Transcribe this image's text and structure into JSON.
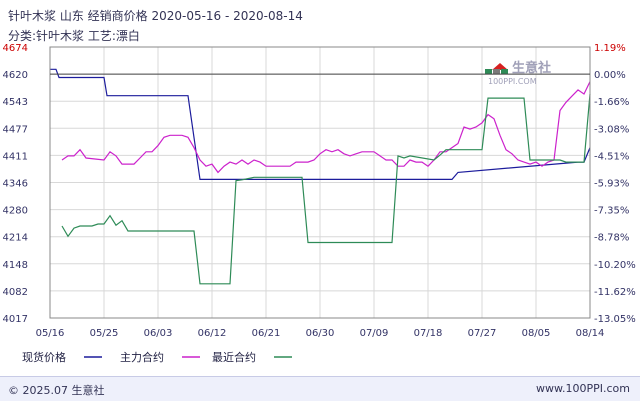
{
  "header": {
    "title": "针叶木浆 山东 经销商价格 2020-05-16 - 2020-08-14",
    "subtitle": "分类:针叶木浆 工艺:漂白"
  },
  "watermark": {
    "text": "生意社",
    "sub": "100PPI.COM"
  },
  "footer": {
    "left": "© 2025.07 生意社",
    "right": "www.100PPI.com"
  },
  "colors": {
    "spot": "#1c1c9c",
    "main_contract": "#cc22cc",
    "nearest_contract": "#2e8b57",
    "left_axis_top": "#cc0000",
    "right_axis_top": "#cc0000",
    "grid": "#d8d8d8",
    "axis_text": "#333366"
  },
  "chart_data": {
    "type": "line",
    "x_ticks": [
      "05/16",
      "05/25",
      "06/03",
      "06/12",
      "06/21",
      "06/30",
      "07/09",
      "07/18",
      "07/27",
      "08/05",
      "08/14"
    ],
    "y_left_ticks": [
      "4674",
      "4620",
      "4543",
      "4477",
      "4411",
      "4346",
      "4280",
      "4214",
      "4148",
      "4082",
      "4017"
    ],
    "y_right_ticks": [
      "1.19%",
      "0.00%",
      "-1.66%",
      "-3.08%",
      "-4.51%",
      "-5.93%",
      "-7.35%",
      "-8.78%",
      "-10.20%",
      "-11.62%",
      "-13.05%"
    ],
    "ylim": [
      4017,
      4674
    ],
    "x_range_days": 90,
    "series": [
      {
        "name": "现货价格",
        "color": "#1c1c9c",
        "points": [
          [
            0,
            4620
          ],
          [
            1,
            4620
          ],
          [
            1.5,
            4600
          ],
          [
            9,
            4600
          ],
          [
            9.5,
            4556
          ],
          [
            23,
            4556
          ],
          [
            25,
            4353
          ],
          [
            67,
            4353
          ],
          [
            68,
            4370
          ],
          [
            88,
            4395
          ],
          [
            89,
            4395
          ],
          [
            90,
            4430
          ]
        ]
      },
      {
        "name": "主力合约",
        "color": "#cc22cc",
        "points": [
          [
            2,
            4400
          ],
          [
            3,
            4410
          ],
          [
            4,
            4410
          ],
          [
            5,
            4425
          ],
          [
            6,
            4405
          ],
          [
            9,
            4400
          ],
          [
            10,
            4420
          ],
          [
            11,
            4410
          ],
          [
            12,
            4390
          ],
          [
            13,
            4390
          ],
          [
            14,
            4390
          ],
          [
            15,
            4405
          ],
          [
            16,
            4420
          ],
          [
            17,
            4420
          ],
          [
            18,
            4435
          ],
          [
            19,
            4455
          ],
          [
            20,
            4460
          ],
          [
            21,
            4460
          ],
          [
            22,
            4460
          ],
          [
            23,
            4455
          ],
          [
            24,
            4430
          ],
          [
            25,
            4400
          ],
          [
            26,
            4385
          ],
          [
            27,
            4390
          ],
          [
            28,
            4370
          ],
          [
            29,
            4385
          ],
          [
            30,
            4395
          ],
          [
            31,
            4390
          ],
          [
            32,
            4400
          ],
          [
            33,
            4390
          ],
          [
            34,
            4400
          ],
          [
            35,
            4395
          ],
          [
            36,
            4385
          ],
          [
            37,
            4385
          ],
          [
            38,
            4385
          ],
          [
            39,
            4385
          ],
          [
            40,
            4385
          ],
          [
            41,
            4395
          ],
          [
            42,
            4395
          ],
          [
            43,
            4395
          ],
          [
            44,
            4400
          ],
          [
            45,
            4415
          ],
          [
            46,
            4425
          ],
          [
            47,
            4420
          ],
          [
            48,
            4425
          ],
          [
            49,
            4415
          ],
          [
            50,
            4410
          ],
          [
            51,
            4415
          ],
          [
            52,
            4420
          ],
          [
            53,
            4420
          ],
          [
            54,
            4420
          ],
          [
            55,
            4410
          ],
          [
            56,
            4400
          ],
          [
            57,
            4400
          ],
          [
            58,
            4385
          ],
          [
            59,
            4385
          ],
          [
            60,
            4400
          ],
          [
            61,
            4395
          ],
          [
            62,
            4395
          ],
          [
            63,
            4385
          ],
          [
            64,
            4400
          ],
          [
            65,
            4420
          ],
          [
            66,
            4420
          ],
          [
            67,
            4430
          ],
          [
            68,
            4440
          ],
          [
            69,
            4480
          ],
          [
            70,
            4475
          ],
          [
            71,
            4480
          ],
          [
            72,
            4490
          ],
          [
            73,
            4510
          ],
          [
            74,
            4500
          ],
          [
            75,
            4460
          ],
          [
            76,
            4425
          ],
          [
            77,
            4415
          ],
          [
            78,
            4400
          ],
          [
            79,
            4395
          ],
          [
            80,
            4390
          ],
          [
            81,
            4395
          ],
          [
            82,
            4385
          ],
          [
            83,
            4395
          ],
          [
            84,
            4400
          ],
          [
            85,
            4520
          ],
          [
            86,
            4540
          ],
          [
            87,
            4555
          ],
          [
            88,
            4570
          ],
          [
            89,
            4560
          ],
          [
            90,
            4590
          ]
        ]
      },
      {
        "name": "最近合约",
        "color": "#2e8b57",
        "points": [
          [
            2,
            4240
          ],
          [
            3,
            4215
          ],
          [
            4,
            4235
          ],
          [
            5,
            4240
          ],
          [
            6,
            4240
          ],
          [
            7,
            4240
          ],
          [
            8,
            4245
          ],
          [
            9,
            4245
          ],
          [
            10,
            4265
          ],
          [
            11,
            4242
          ],
          [
            12,
            4253
          ],
          [
            13,
            4228
          ],
          [
            14,
            4228
          ],
          [
            24,
            4228
          ],
          [
            25,
            4100
          ],
          [
            30,
            4100
          ],
          [
            31,
            4350
          ],
          [
            32,
            4352
          ],
          [
            33,
            4355
          ],
          [
            34,
            4358
          ],
          [
            35,
            4358
          ],
          [
            42,
            4358
          ],
          [
            43,
            4200
          ],
          [
            57,
            4200
          ],
          [
            58,
            4410
          ],
          [
            59,
            4405
          ],
          [
            60,
            4410
          ],
          [
            64,
            4400
          ],
          [
            65,
            4412
          ],
          [
            66,
            4425
          ],
          [
            67,
            4425
          ],
          [
            72,
            4425
          ],
          [
            73,
            4550
          ],
          [
            79,
            4550
          ],
          [
            80,
            4400
          ],
          [
            85,
            4400
          ],
          [
            86,
            4395
          ],
          [
            89,
            4395
          ],
          [
            90,
            4560
          ]
        ]
      }
    ],
    "legend": [
      "现货价格",
      "主力合约",
      "最近合约"
    ]
  }
}
